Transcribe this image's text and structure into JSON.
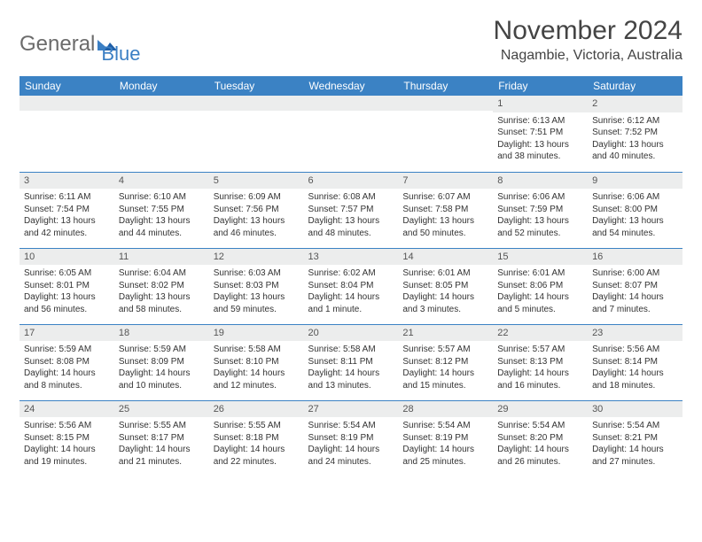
{
  "logo": {
    "word1": "General",
    "word2": "Blue"
  },
  "title": "November 2024",
  "location": "Nagambie, Victoria, Australia",
  "colors": {
    "header_bg": "#3b82c4",
    "header_text": "#ffffff",
    "day_number_bg": "#eceded",
    "row_divider": "#3b82c4",
    "logo_gray": "#6b6b6b",
    "logo_blue": "#3b7fc4"
  },
  "weekdays": [
    "Sunday",
    "Monday",
    "Tuesday",
    "Wednesday",
    "Thursday",
    "Friday",
    "Saturday"
  ],
  "weeks": [
    [
      {
        "empty": true
      },
      {
        "empty": true
      },
      {
        "empty": true
      },
      {
        "empty": true
      },
      {
        "empty": true
      },
      {
        "day": "1",
        "sunrise": "Sunrise: 6:13 AM",
        "sunset": "Sunset: 7:51 PM",
        "daylight1": "Daylight: 13 hours",
        "daylight2": "and 38 minutes."
      },
      {
        "day": "2",
        "sunrise": "Sunrise: 6:12 AM",
        "sunset": "Sunset: 7:52 PM",
        "daylight1": "Daylight: 13 hours",
        "daylight2": "and 40 minutes."
      }
    ],
    [
      {
        "day": "3",
        "sunrise": "Sunrise: 6:11 AM",
        "sunset": "Sunset: 7:54 PM",
        "daylight1": "Daylight: 13 hours",
        "daylight2": "and 42 minutes."
      },
      {
        "day": "4",
        "sunrise": "Sunrise: 6:10 AM",
        "sunset": "Sunset: 7:55 PM",
        "daylight1": "Daylight: 13 hours",
        "daylight2": "and 44 minutes."
      },
      {
        "day": "5",
        "sunrise": "Sunrise: 6:09 AM",
        "sunset": "Sunset: 7:56 PM",
        "daylight1": "Daylight: 13 hours",
        "daylight2": "and 46 minutes."
      },
      {
        "day": "6",
        "sunrise": "Sunrise: 6:08 AM",
        "sunset": "Sunset: 7:57 PM",
        "daylight1": "Daylight: 13 hours",
        "daylight2": "and 48 minutes."
      },
      {
        "day": "7",
        "sunrise": "Sunrise: 6:07 AM",
        "sunset": "Sunset: 7:58 PM",
        "daylight1": "Daylight: 13 hours",
        "daylight2": "and 50 minutes."
      },
      {
        "day": "8",
        "sunrise": "Sunrise: 6:06 AM",
        "sunset": "Sunset: 7:59 PM",
        "daylight1": "Daylight: 13 hours",
        "daylight2": "and 52 minutes."
      },
      {
        "day": "9",
        "sunrise": "Sunrise: 6:06 AM",
        "sunset": "Sunset: 8:00 PM",
        "daylight1": "Daylight: 13 hours",
        "daylight2": "and 54 minutes."
      }
    ],
    [
      {
        "day": "10",
        "sunrise": "Sunrise: 6:05 AM",
        "sunset": "Sunset: 8:01 PM",
        "daylight1": "Daylight: 13 hours",
        "daylight2": "and 56 minutes."
      },
      {
        "day": "11",
        "sunrise": "Sunrise: 6:04 AM",
        "sunset": "Sunset: 8:02 PM",
        "daylight1": "Daylight: 13 hours",
        "daylight2": "and 58 minutes."
      },
      {
        "day": "12",
        "sunrise": "Sunrise: 6:03 AM",
        "sunset": "Sunset: 8:03 PM",
        "daylight1": "Daylight: 13 hours",
        "daylight2": "and 59 minutes."
      },
      {
        "day": "13",
        "sunrise": "Sunrise: 6:02 AM",
        "sunset": "Sunset: 8:04 PM",
        "daylight1": "Daylight: 14 hours",
        "daylight2": "and 1 minute."
      },
      {
        "day": "14",
        "sunrise": "Sunrise: 6:01 AM",
        "sunset": "Sunset: 8:05 PM",
        "daylight1": "Daylight: 14 hours",
        "daylight2": "and 3 minutes."
      },
      {
        "day": "15",
        "sunrise": "Sunrise: 6:01 AM",
        "sunset": "Sunset: 8:06 PM",
        "daylight1": "Daylight: 14 hours",
        "daylight2": "and 5 minutes."
      },
      {
        "day": "16",
        "sunrise": "Sunrise: 6:00 AM",
        "sunset": "Sunset: 8:07 PM",
        "daylight1": "Daylight: 14 hours",
        "daylight2": "and 7 minutes."
      }
    ],
    [
      {
        "day": "17",
        "sunrise": "Sunrise: 5:59 AM",
        "sunset": "Sunset: 8:08 PM",
        "daylight1": "Daylight: 14 hours",
        "daylight2": "and 8 minutes."
      },
      {
        "day": "18",
        "sunrise": "Sunrise: 5:59 AM",
        "sunset": "Sunset: 8:09 PM",
        "daylight1": "Daylight: 14 hours",
        "daylight2": "and 10 minutes."
      },
      {
        "day": "19",
        "sunrise": "Sunrise: 5:58 AM",
        "sunset": "Sunset: 8:10 PM",
        "daylight1": "Daylight: 14 hours",
        "daylight2": "and 12 minutes."
      },
      {
        "day": "20",
        "sunrise": "Sunrise: 5:58 AM",
        "sunset": "Sunset: 8:11 PM",
        "daylight1": "Daylight: 14 hours",
        "daylight2": "and 13 minutes."
      },
      {
        "day": "21",
        "sunrise": "Sunrise: 5:57 AM",
        "sunset": "Sunset: 8:12 PM",
        "daylight1": "Daylight: 14 hours",
        "daylight2": "and 15 minutes."
      },
      {
        "day": "22",
        "sunrise": "Sunrise: 5:57 AM",
        "sunset": "Sunset: 8:13 PM",
        "daylight1": "Daylight: 14 hours",
        "daylight2": "and 16 minutes."
      },
      {
        "day": "23",
        "sunrise": "Sunrise: 5:56 AM",
        "sunset": "Sunset: 8:14 PM",
        "daylight1": "Daylight: 14 hours",
        "daylight2": "and 18 minutes."
      }
    ],
    [
      {
        "day": "24",
        "sunrise": "Sunrise: 5:56 AM",
        "sunset": "Sunset: 8:15 PM",
        "daylight1": "Daylight: 14 hours",
        "daylight2": "and 19 minutes."
      },
      {
        "day": "25",
        "sunrise": "Sunrise: 5:55 AM",
        "sunset": "Sunset: 8:17 PM",
        "daylight1": "Daylight: 14 hours",
        "daylight2": "and 21 minutes."
      },
      {
        "day": "26",
        "sunrise": "Sunrise: 5:55 AM",
        "sunset": "Sunset: 8:18 PM",
        "daylight1": "Daylight: 14 hours",
        "daylight2": "and 22 minutes."
      },
      {
        "day": "27",
        "sunrise": "Sunrise: 5:54 AM",
        "sunset": "Sunset: 8:19 PM",
        "daylight1": "Daylight: 14 hours",
        "daylight2": "and 24 minutes."
      },
      {
        "day": "28",
        "sunrise": "Sunrise: 5:54 AM",
        "sunset": "Sunset: 8:19 PM",
        "daylight1": "Daylight: 14 hours",
        "daylight2": "and 25 minutes."
      },
      {
        "day": "29",
        "sunrise": "Sunrise: 5:54 AM",
        "sunset": "Sunset: 8:20 PM",
        "daylight1": "Daylight: 14 hours",
        "daylight2": "and 26 minutes."
      },
      {
        "day": "30",
        "sunrise": "Sunrise: 5:54 AM",
        "sunset": "Sunset: 8:21 PM",
        "daylight1": "Daylight: 14 hours",
        "daylight2": "and 27 minutes."
      }
    ]
  ]
}
